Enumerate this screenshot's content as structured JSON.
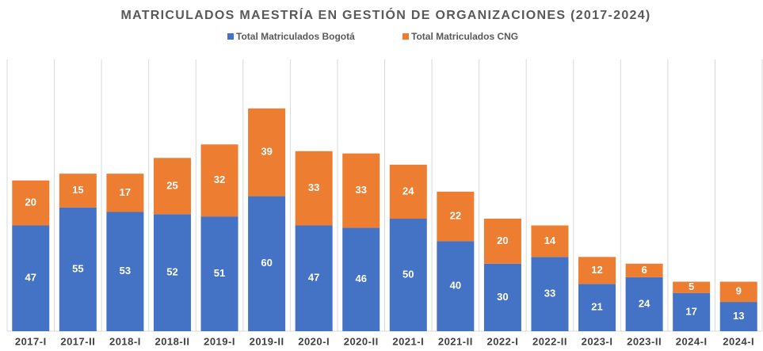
{
  "chart_data": {
    "type": "stacked_bar",
    "title": "MATRICULADOS MAESTRÍA EN GESTIÓN DE ORGANIZACIONES (2017-2024)",
    "categories": [
      "2017-I",
      "2017-II",
      "2018-I",
      "2018-II",
      "2019-I",
      "2019-II",
      "2020-I",
      "2020-II",
      "2021-I",
      "2021-II",
      "2022-I",
      "2022-II",
      "2023-I",
      "2023-II",
      "2024-I",
      "2024-I"
    ],
    "series": [
      {
        "name": "Total Matriculados Bogotá",
        "color": "#4472c4",
        "values": [
          47,
          55,
          53,
          52,
          51,
          60,
          47,
          46,
          50,
          40,
          30,
          33,
          21,
          24,
          17,
          13
        ]
      },
      {
        "name": "Total Matriculados CNG",
        "color": "#ed7d31",
        "values": [
          20,
          15,
          17,
          25,
          32,
          39,
          33,
          33,
          24,
          22,
          20,
          14,
          12,
          6,
          5,
          9
        ]
      }
    ],
    "grid": true
  }
}
